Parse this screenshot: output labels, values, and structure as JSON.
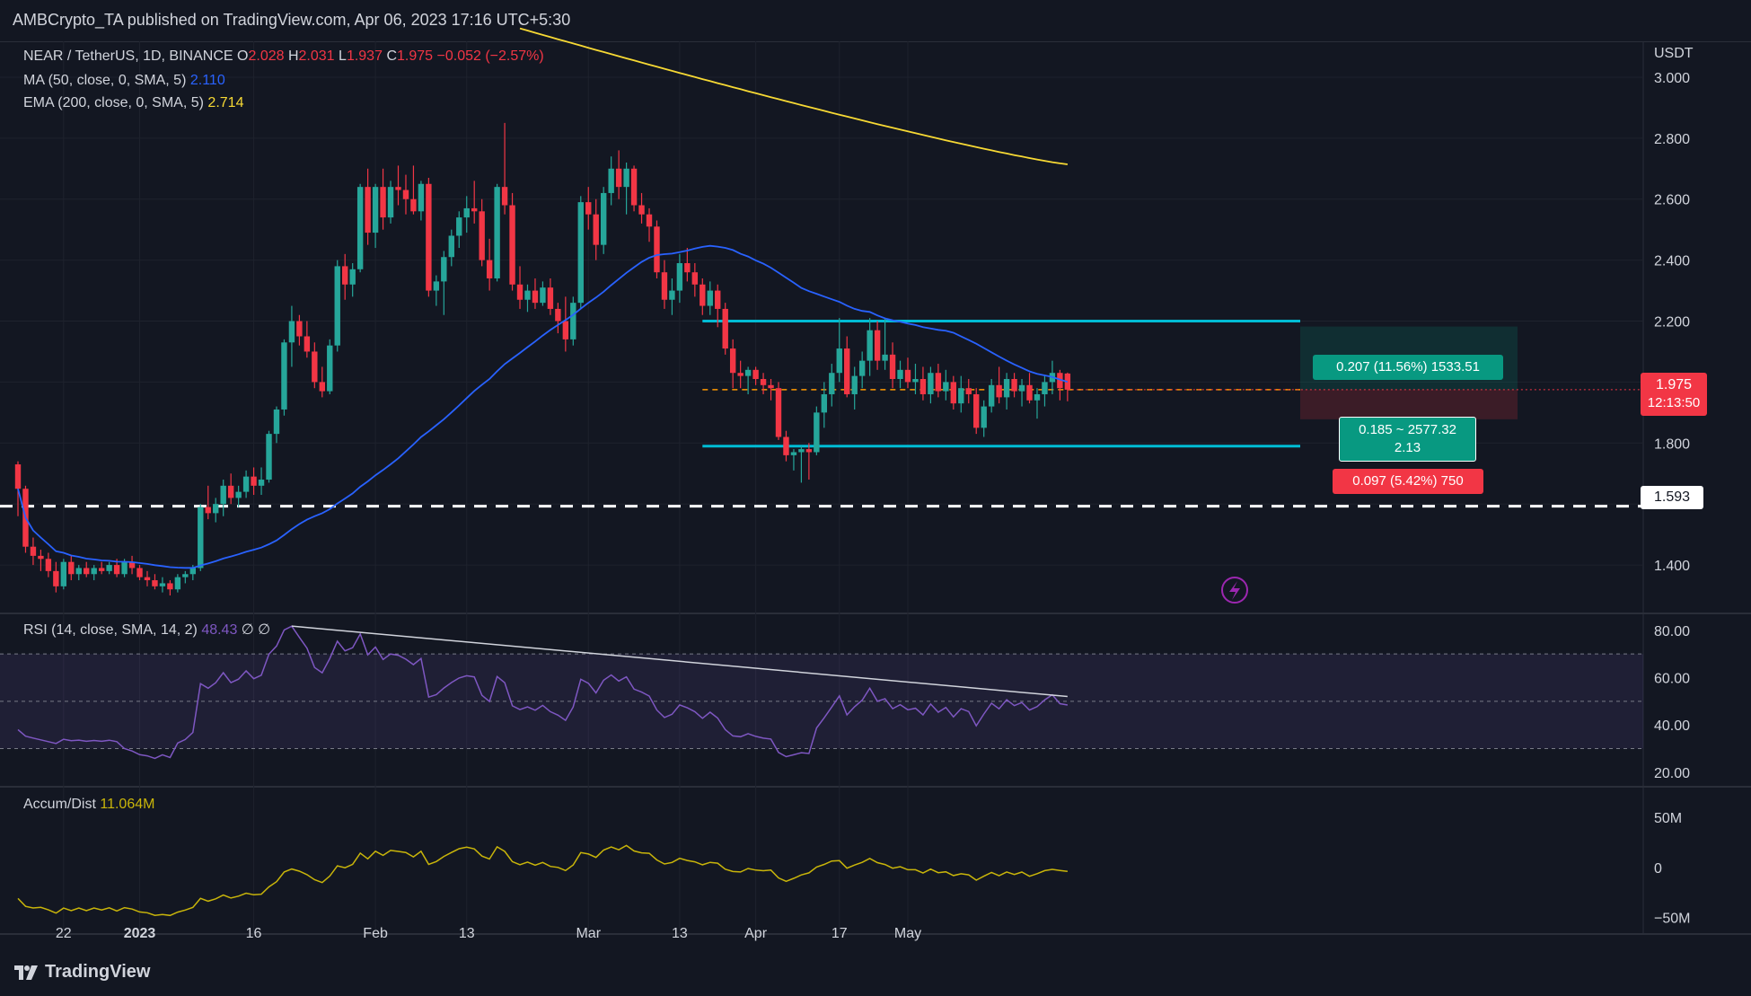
{
  "header": {
    "publisher": "AMBCrypto_TA published on TradingView.com, Apr 06, 2023 17:16 UTC+5:30"
  },
  "legend": {
    "symbol": "NEAR / TetherUS, 1D, BINANCE",
    "o_label": "O",
    "o_val": "2.028",
    "h_label": "H",
    "h_val": "2.031",
    "l_label": "L",
    "l_val": "1.937",
    "c_label": "C",
    "c_val": "1.975",
    "change": "−0.052 (−2.57%)",
    "ma_label": "MA (50, close, 0, SMA, 5)",
    "ma_val": "2.110",
    "ema_label": "EMA (200, close, 0, SMA, 5)",
    "ema_val": "2.714",
    "rsi_label": "RSI (14, close, SMA, 14, 2)",
    "rsi_val": "48.43",
    "rsi_extra": "∅  ∅",
    "ad_label": "Accum/Dist",
    "ad_val": "11.064M"
  },
  "colors": {
    "background": "#131722",
    "up": "#26a69a",
    "down": "#f23645",
    "ma50": "#2962ff",
    "ema200": "#f7d934",
    "channel": "#00bcd4",
    "rsi": "#7e57c2",
    "accum": "#c9b50a"
  },
  "position_tool": {
    "target": "0.207 (11.56%) 1533.51",
    "middle_line1": "0.185 ~ 2577.32",
    "middle_line2": "2.13",
    "stop": "0.097 (5.42%) 750"
  },
  "price_axis": {
    "currency": "USDT",
    "ticks": [
      "3.000",
      "2.800",
      "2.600",
      "2.400",
      "2.200",
      "1.800",
      "1.400"
    ],
    "current_price": "1.975",
    "countdown": "12:13:50",
    "support_label": "1.593"
  },
  "rsi_axis": {
    "ticks": [
      "80.00",
      "60.00",
      "40.00",
      "20.00"
    ]
  },
  "ad_axis": {
    "ticks": [
      "50M",
      "0",
      "−50M"
    ]
  },
  "time_axis": [
    "22",
    "2023",
    "16",
    "Feb",
    "13",
    "Mar",
    "13",
    "Apr",
    "17",
    "May"
  ],
  "footer": {
    "brand": "TradingView"
  },
  "chart_data": {
    "type": "candlestick",
    "symbol": "NEAR / TetherUS",
    "timeframe": "1D",
    "dates_start": "2022-12-16",
    "ohlc": [
      [
        1.73,
        1.74,
        1.56,
        1.65
      ],
      [
        1.65,
        1.66,
        1.44,
        1.46
      ],
      [
        1.46,
        1.49,
        1.4,
        1.43
      ],
      [
        1.43,
        1.45,
        1.38,
        1.42
      ],
      [
        1.42,
        1.44,
        1.36,
        1.38
      ],
      [
        1.38,
        1.41,
        1.31,
        1.33
      ],
      [
        1.33,
        1.42,
        1.32,
        1.41
      ],
      [
        1.41,
        1.43,
        1.35,
        1.37
      ],
      [
        1.37,
        1.4,
        1.35,
        1.39
      ],
      [
        1.39,
        1.41,
        1.36,
        1.37
      ],
      [
        1.37,
        1.4,
        1.35,
        1.39
      ],
      [
        1.39,
        1.41,
        1.37,
        1.38
      ],
      [
        1.38,
        1.41,
        1.37,
        1.4
      ],
      [
        1.4,
        1.42,
        1.36,
        1.37
      ],
      [
        1.37,
        1.42,
        1.36,
        1.41
      ],
      [
        1.41,
        1.43,
        1.37,
        1.39
      ],
      [
        1.39,
        1.4,
        1.35,
        1.36
      ],
      [
        1.36,
        1.38,
        1.33,
        1.35
      ],
      [
        1.35,
        1.37,
        1.32,
        1.33
      ],
      [
        1.33,
        1.36,
        1.31,
        1.34
      ],
      [
        1.34,
        1.35,
        1.3,
        1.32
      ],
      [
        1.32,
        1.37,
        1.31,
        1.36
      ],
      [
        1.36,
        1.38,
        1.34,
        1.37
      ],
      [
        1.37,
        1.4,
        1.35,
        1.39
      ],
      [
        1.39,
        1.6,
        1.38,
        1.59
      ],
      [
        1.59,
        1.66,
        1.55,
        1.57
      ],
      [
        1.57,
        1.62,
        1.54,
        1.6
      ],
      [
        1.6,
        1.68,
        1.56,
        1.66
      ],
      [
        1.66,
        1.7,
        1.6,
        1.62
      ],
      [
        1.62,
        1.66,
        1.59,
        1.64
      ],
      [
        1.64,
        1.71,
        1.62,
        1.69
      ],
      [
        1.69,
        1.72,
        1.63,
        1.66
      ],
      [
        1.66,
        1.72,
        1.63,
        1.68
      ],
      [
        1.68,
        1.84,
        1.67,
        1.83
      ],
      [
        1.83,
        1.92,
        1.8,
        1.91
      ],
      [
        1.91,
        2.14,
        1.89,
        2.13
      ],
      [
        2.13,
        2.25,
        2.05,
        2.2
      ],
      [
        2.2,
        2.22,
        2.12,
        2.15
      ],
      [
        2.15,
        2.2,
        2.08,
        2.1
      ],
      [
        2.1,
        2.13,
        1.98,
        2.0
      ],
      [
        2.0,
        2.05,
        1.95,
        1.97
      ],
      [
        1.97,
        2.14,
        1.96,
        2.12
      ],
      [
        2.12,
        2.4,
        2.1,
        2.38
      ],
      [
        2.38,
        2.42,
        2.27,
        2.32
      ],
      [
        2.32,
        2.39,
        2.28,
        2.37
      ],
      [
        2.37,
        2.65,
        2.36,
        2.64
      ],
      [
        2.64,
        2.7,
        2.45,
        2.49
      ],
      [
        2.49,
        2.65,
        2.44,
        2.64
      ],
      [
        2.64,
        2.7,
        2.5,
        2.54
      ],
      [
        2.54,
        2.66,
        2.52,
        2.64
      ],
      [
        2.64,
        2.71,
        2.58,
        2.63
      ],
      [
        2.63,
        2.68,
        2.55,
        2.6
      ],
      [
        2.6,
        2.71,
        2.55,
        2.56
      ],
      [
        2.56,
        2.66,
        2.53,
        2.65
      ],
      [
        2.65,
        2.67,
        2.28,
        2.3
      ],
      [
        2.3,
        2.35,
        2.25,
        2.33
      ],
      [
        2.33,
        2.43,
        2.22,
        2.41
      ],
      [
        2.41,
        2.5,
        2.38,
        2.48
      ],
      [
        2.48,
        2.56,
        2.44,
        2.54
      ],
      [
        2.54,
        2.61,
        2.49,
        2.57
      ],
      [
        2.57,
        2.66,
        2.52,
        2.56
      ],
      [
        2.56,
        2.6,
        2.38,
        2.4
      ],
      [
        2.4,
        2.47,
        2.3,
        2.34
      ],
      [
        2.34,
        2.65,
        2.33,
        2.64
      ],
      [
        2.64,
        2.85,
        2.55,
        2.58
      ],
      [
        2.58,
        2.62,
        2.3,
        2.32
      ],
      [
        2.32,
        2.38,
        2.24,
        2.27
      ],
      [
        2.27,
        2.32,
        2.23,
        2.3
      ],
      [
        2.3,
        2.34,
        2.24,
        2.26
      ],
      [
        2.26,
        2.33,
        2.25,
        2.31
      ],
      [
        2.31,
        2.34,
        2.22,
        2.24
      ],
      [
        2.24,
        2.26,
        2.16,
        2.2
      ],
      [
        2.2,
        2.28,
        2.1,
        2.14
      ],
      [
        2.14,
        2.28,
        2.12,
        2.26
      ],
      [
        2.26,
        2.61,
        2.24,
        2.59
      ],
      [
        2.59,
        2.64,
        2.5,
        2.55
      ],
      [
        2.55,
        2.6,
        2.4,
        2.45
      ],
      [
        2.45,
        2.64,
        2.42,
        2.62
      ],
      [
        2.62,
        2.74,
        2.58,
        2.7
      ],
      [
        2.7,
        2.76,
        2.6,
        2.64
      ],
      [
        2.64,
        2.72,
        2.55,
        2.7
      ],
      [
        2.7,
        2.71,
        2.56,
        2.58
      ],
      [
        2.58,
        2.62,
        2.52,
        2.55
      ],
      [
        2.55,
        2.57,
        2.46,
        2.51
      ],
      [
        2.51,
        2.53,
        2.34,
        2.36
      ],
      [
        2.36,
        2.4,
        2.24,
        2.27
      ],
      [
        2.27,
        2.34,
        2.22,
        2.3
      ],
      [
        2.3,
        2.42,
        2.26,
        2.39
      ],
      [
        2.39,
        2.44,
        2.33,
        2.36
      ],
      [
        2.36,
        2.39,
        2.28,
        2.32
      ],
      [
        2.32,
        2.34,
        2.22,
        2.25
      ],
      [
        2.25,
        2.33,
        2.22,
        2.3
      ],
      [
        2.3,
        2.32,
        2.18,
        2.24
      ],
      [
        2.24,
        2.26,
        2.09,
        2.11
      ],
      [
        2.11,
        2.14,
        1.98,
        2.03
      ],
      [
        2.03,
        2.07,
        1.98,
        2.02
      ],
      [
        2.02,
        2.05,
        1.96,
        2.04
      ],
      [
        2.04,
        2.05,
        1.99,
        2.01
      ],
      [
        2.01,
        2.03,
        1.96,
        1.99
      ],
      [
        1.99,
        2.01,
        1.94,
        1.98
      ],
      [
        1.98,
        2.0,
        1.81,
        1.82
      ],
      [
        1.82,
        1.84,
        1.74,
        1.76
      ],
      [
        1.76,
        1.78,
        1.71,
        1.77
      ],
      [
        1.77,
        1.79,
        1.67,
        1.78
      ],
      [
        1.78,
        1.8,
        1.68,
        1.77
      ],
      [
        1.77,
        1.92,
        1.76,
        1.9
      ],
      [
        1.9,
        2.0,
        1.85,
        1.96
      ],
      [
        1.96,
        2.06,
        1.92,
        2.03
      ],
      [
        2.03,
        2.21,
        2.0,
        2.11
      ],
      [
        2.11,
        2.15,
        1.95,
        1.96
      ],
      [
        1.96,
        2.05,
        1.91,
        2.02
      ],
      [
        2.02,
        2.1,
        1.98,
        2.07
      ],
      [
        2.07,
        2.21,
        2.02,
        2.17
      ],
      [
        2.17,
        2.2,
        2.04,
        2.07
      ],
      [
        2.07,
        2.21,
        2.04,
        2.09
      ],
      [
        2.09,
        2.13,
        1.98,
        2.01
      ],
      [
        2.01,
        2.07,
        1.98,
        2.04
      ],
      [
        2.04,
        2.08,
        1.98,
        2.0
      ],
      [
        2.0,
        2.06,
        1.96,
        2.01
      ],
      [
        2.01,
        2.05,
        1.94,
        1.96
      ],
      [
        1.96,
        2.05,
        1.93,
        2.03
      ],
      [
        2.03,
        2.06,
        1.95,
        1.97
      ],
      [
        1.97,
        2.04,
        1.94,
        2.0
      ],
      [
        2.0,
        2.02,
        1.91,
        1.93
      ],
      [
        1.93,
        2.02,
        1.9,
        1.98
      ],
      [
        1.98,
        2.01,
        1.93,
        1.96
      ],
      [
        1.96,
        1.98,
        1.83,
        1.85
      ],
      [
        1.85,
        1.94,
        1.82,
        1.92
      ],
      [
        1.92,
        2.01,
        1.9,
        1.99
      ],
      [
        1.99,
        2.05,
        1.93,
        1.95
      ],
      [
        1.95,
        2.03,
        1.91,
        2.01
      ],
      [
        2.01,
        2.03,
        1.95,
        1.97
      ],
      [
        1.97,
        2.01,
        1.92,
        1.99
      ],
      [
        1.99,
        2.03,
        1.93,
        1.94
      ],
      [
        1.94,
        1.98,
        1.88,
        1.96
      ],
      [
        1.96,
        2.02,
        1.92,
        2.0
      ],
      [
        2.0,
        2.07,
        1.96,
        2.03
      ],
      [
        2.03,
        2.04,
        1.94,
        1.98
      ],
      [
        2.028,
        2.031,
        1.937,
        1.975
      ]
    ],
    "ma50_last": 2.11,
    "ema200_last": 2.714,
    "support_line": 1.593,
    "channel_top": 2.2,
    "channel_bottom": 1.79,
    "entry": 1.975,
    "target": 2.182,
    "stop": 1.878,
    "price_ylim": [
      1.25,
      3.1
    ],
    "rsi_last": 48.43,
    "rsi_levels": [
      70,
      50,
      30
    ],
    "rsi_ylim": [
      15,
      86
    ],
    "accum_dist_last_millions": 11.064,
    "accum_dist_ylim_millions": [
      -63,
      78
    ]
  }
}
